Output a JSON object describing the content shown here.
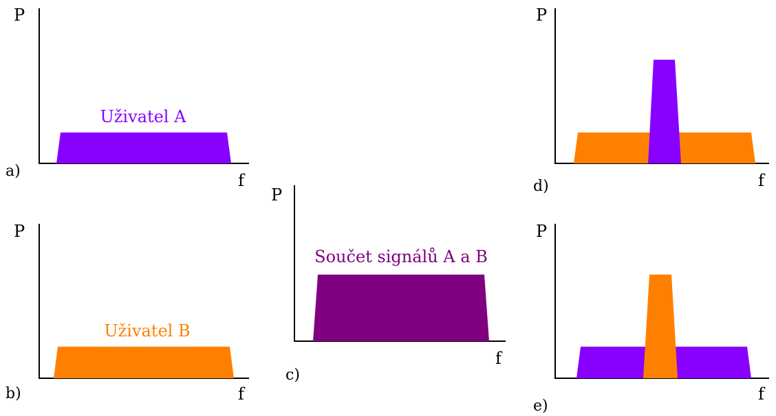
{
  "axis": {
    "y_label": "P",
    "x_label": "f"
  },
  "colors": {
    "user_a": "#8800ff",
    "user_b": "#ff8000",
    "sum": "#800080",
    "axis": "#000000"
  },
  "panels": {
    "a": {
      "letter": "a)",
      "caption": "Uživatel A"
    },
    "b": {
      "letter": "b)",
      "caption": "Uživatel B"
    },
    "c": {
      "letter": "c)",
      "caption": "Součet signálů A a B"
    },
    "d": {
      "letter": "d)"
    },
    "e": {
      "letter": "e)"
    }
  }
}
